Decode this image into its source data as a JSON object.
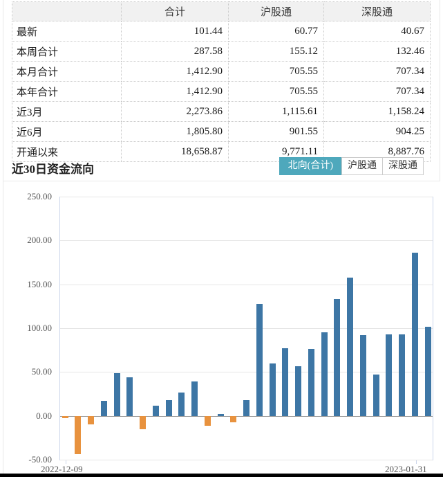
{
  "table": {
    "headers": [
      "",
      "合计",
      "沪股通",
      "深股通"
    ],
    "rows": [
      {
        "label": "最新",
        "total": "101.44",
        "sh": "60.77",
        "sz": "40.67"
      },
      {
        "label": "本周合计",
        "total": "287.58",
        "sh": "155.12",
        "sz": "132.46"
      },
      {
        "label": "本月合计",
        "total": "1,412.90",
        "sh": "705.55",
        "sz": "707.34"
      },
      {
        "label": "本年合计",
        "total": "1,412.90",
        "sh": "705.55",
        "sz": "707.34"
      },
      {
        "label": "近3月",
        "total": "2,273.86",
        "sh": "1,115.61",
        "sz": "1,158.24"
      },
      {
        "label": "近6月",
        "total": "1,805.80",
        "sh": "901.55",
        "sz": "904.25"
      },
      {
        "label": "开通以来",
        "total": "18,658.87",
        "sh": "9,771.11",
        "sz": "8,887.76"
      }
    ]
  },
  "section": {
    "title": "近30日资金流向",
    "tabs": [
      {
        "label": "北向(合计)",
        "active": true
      },
      {
        "label": "沪股通",
        "active": false
      },
      {
        "label": "深股通",
        "active": false
      }
    ],
    "active_tab_color": "#4ea8bc"
  },
  "chart_data": {
    "type": "bar",
    "title": "近30日资金流向 北向(合计)",
    "values": [
      -3,
      -44,
      -10,
      17,
      49,
      44,
      -15,
      12,
      18,
      27,
      39,
      -11,
      2,
      -7,
      18,
      128,
      60,
      77,
      57,
      76,
      95,
      133,
      158,
      92,
      47,
      93,
      93,
      186,
      101.44
    ],
    "x_tick_labels": [
      "2022-12-09",
      "2023-01-31"
    ],
    "ylim": [
      -50,
      250
    ],
    "yticks": [
      250,
      200,
      150,
      100,
      50,
      0,
      -50
    ],
    "ytick_format_decimals": 2,
    "grid": true,
    "legend": "none",
    "positive_color": "#3d76a5",
    "negative_color": "#e8923e"
  }
}
